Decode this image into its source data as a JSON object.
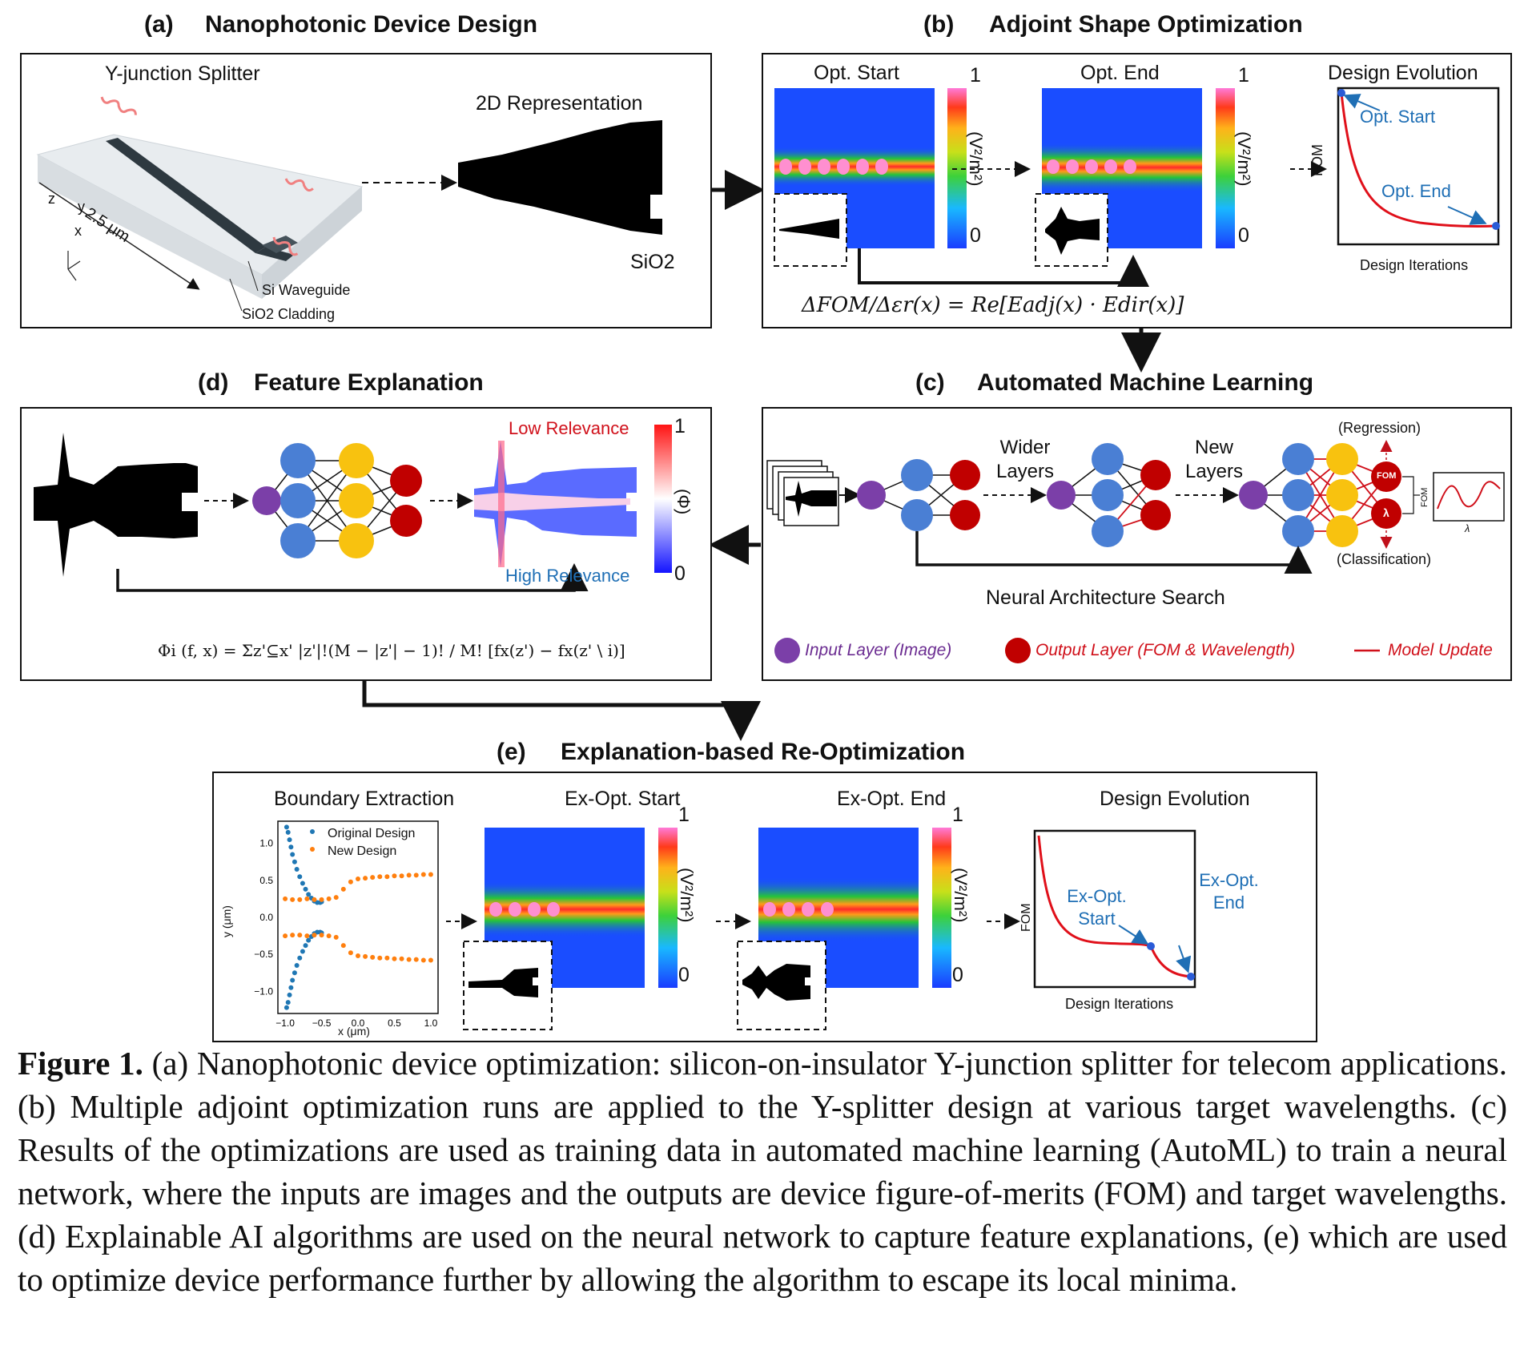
{
  "panels": {
    "a": {
      "letter": "(a)",
      "title": "Nanophotonic Device Design",
      "y_junction_label": "Y-junction Splitter",
      "rep_label": "2D Representation",
      "dim_label": "2.5 μm",
      "si_label": "Si",
      "sio2_label": "SiO2",
      "si_waveguide": "Si Waveguide",
      "sio2_cladding": "SiO2 Cladding",
      "axis_z": "z",
      "axis_y": "y",
      "axis_x": "x"
    },
    "b": {
      "letter": "(b)",
      "title": "Adjoint Shape Optimization",
      "opt_start": "Opt. Start",
      "opt_end": "Opt. End",
      "design_evolution": "Design Evolution",
      "cbar_label": "(V²/m²)",
      "cbar_max": "1",
      "cbar_min": "0",
      "fom_axis": "FOM",
      "iter_axis": "Design Iterations",
      "annot_start": "Opt. Start",
      "annot_end": "Opt. End",
      "formula": "ΔFOM/Δεr(x) = Re[Eadj(x) · Edir(x)]"
    },
    "c": {
      "letter": "(c)",
      "title": "Automated Machine Learning",
      "wider": "Wider Layers",
      "newl": "New Layers",
      "regression": "(Regression)",
      "classification": "(Classification)",
      "fom_node": "FOM",
      "lambda_node": "λ",
      "plot_y": "FOM",
      "plot_x": "λ",
      "nas": "Neural Architecture Search",
      "legend_input": "Input Layer (Image)",
      "legend_output": "Output Layer (FOM & Wavelength)",
      "legend_update": "Model Update"
    },
    "d": {
      "letter": "(d)",
      "title": "Feature Explanation",
      "low": "Low Relevance",
      "high": "High Relevance",
      "cbar_max": "1",
      "cbar_min": "0",
      "cbar_label": "(Φ)",
      "formula": "Φi (f, x) = Σz'⊆x' |z'|!(M − |z'| − 1)! / M! [fx(z') − fx(z' \\ i)]"
    },
    "e": {
      "letter": "(e)",
      "title": "Explanation-based Re-Optimization",
      "boundary": "Boundary Extraction",
      "ex_start": "Ex-Opt. Start",
      "ex_end": "Ex-Opt. End",
      "design_evolution": "Design Evolution",
      "legend_orig": "Original Design",
      "legend_new": "New Design",
      "ylabel": "y (μm)",
      "xlabel": "x (μm)",
      "cbar_label": "(V²/m²)",
      "cbar_max": "1",
      "cbar_min": "0",
      "fom_axis": "FOM",
      "iter_axis": "Design Iterations",
      "annot_start": "Ex-Opt. Start",
      "annot_end": "Ex-Opt. End"
    }
  },
  "chart_data": {
    "type": "scatter",
    "xlabel": "x (μm)",
    "ylabel": "y (μm)",
    "xlim": [
      -1.1,
      1.1
    ],
    "ylim": [
      -1.3,
      1.3
    ],
    "xticks": [
      "−1.0",
      "−0.5",
      "0.0",
      "0.5",
      "1.0"
    ],
    "yticks": [
      "1.0",
      "0.5",
      "0.0",
      "−0.5",
      "−1.0"
    ],
    "legend_position": "top-right",
    "series": [
      {
        "name": "Original Design",
        "color": "#1f77b4",
        "x": [
          -0.98,
          -0.96,
          -0.94,
          -0.92,
          -0.9,
          -0.87,
          -0.84,
          -0.8,
          -0.76,
          -0.72,
          -0.68,
          -0.64,
          -0.6,
          -0.56,
          -0.52,
          -0.5,
          -0.98,
          -0.96,
          -0.94,
          -0.92,
          -0.9,
          -0.87,
          -0.84,
          -0.8,
          -0.76,
          -0.72,
          -0.68,
          -0.64,
          -0.6,
          -0.56,
          -0.52,
          -0.5
        ],
        "y": [
          1.22,
          1.15,
          1.05,
          0.95,
          0.85,
          0.75,
          0.65,
          0.55,
          0.46,
          0.38,
          0.31,
          0.26,
          0.22,
          0.2,
          0.2,
          0.21,
          -1.22,
          -1.15,
          -1.05,
          -0.95,
          -0.85,
          -0.75,
          -0.65,
          -0.55,
          -0.46,
          -0.38,
          -0.31,
          -0.26,
          -0.22,
          -0.2,
          -0.2,
          -0.21
        ]
      },
      {
        "name": "New Design",
        "color": "#ff7f0e",
        "x": [
          -1.0,
          -0.9,
          -0.8,
          -0.7,
          -0.6,
          -0.5,
          -0.4,
          -0.3,
          -0.2,
          -0.1,
          0.0,
          0.1,
          0.2,
          0.3,
          0.4,
          0.5,
          0.6,
          0.7,
          0.8,
          0.9,
          1.0,
          -1.0,
          -0.9,
          -0.8,
          -0.7,
          -0.6,
          -0.5,
          -0.4,
          -0.3,
          -0.2,
          -0.1,
          0.0,
          0.1,
          0.2,
          0.3,
          0.4,
          0.5,
          0.6,
          0.7,
          0.8,
          0.9,
          1.0
        ],
        "y": [
          0.25,
          0.24,
          0.24,
          0.25,
          0.24,
          0.24,
          0.25,
          0.27,
          0.38,
          0.48,
          0.52,
          0.53,
          0.54,
          0.55,
          0.55,
          0.56,
          0.56,
          0.57,
          0.57,
          0.58,
          0.58,
          -0.25,
          -0.24,
          -0.24,
          -0.25,
          -0.24,
          -0.24,
          -0.25,
          -0.27,
          -0.38,
          -0.48,
          -0.52,
          -0.53,
          -0.54,
          -0.55,
          -0.55,
          -0.56,
          -0.56,
          -0.57,
          -0.57,
          -0.58,
          -0.58
        ]
      }
    ]
  },
  "caption": {
    "label": "Figure 1.",
    "text": " (a) Nanophotonic device optimization: silicon-on-insulator Y-junction splitter for telecom applications. (b) Multiple adjoint optimization runs are applied to the Y-splitter design at various target wavelengths. (c) Results of the optimizations are used as training data in automated machine learning (AutoML) to train a neural network, where the inputs are images and the outputs are device figure-of-merits (FOM) and target wavelengths. (d) Explainable AI algorithms are used on the neural network to capture feature explanations, (e) which are used to optimize device performance further by allowing the algorithm to escape its local minima."
  }
}
